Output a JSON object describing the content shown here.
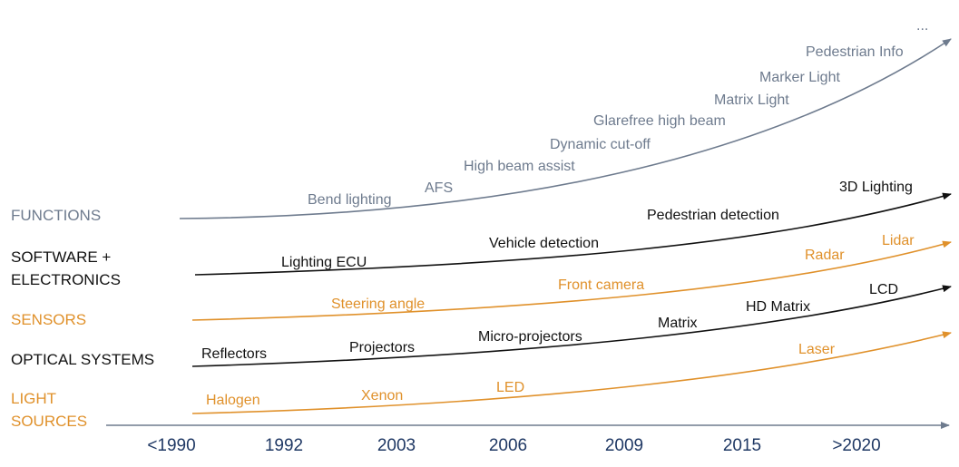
{
  "colors": {
    "functions": "#6e7b8e",
    "black": "#111111",
    "orange": "#e0912b",
    "axis": "#6e7b8e",
    "years": "#1f3864"
  },
  "categories": [
    {
      "id": "functions",
      "lines": [
        "FUNCTIONS"
      ],
      "color": "functions"
    },
    {
      "id": "software",
      "lines": [
        "SOFTWARE +",
        "ELECTRONICS"
      ],
      "color": "black"
    },
    {
      "id": "sensors",
      "lines": [
        "SENSORS"
      ],
      "color": "orange"
    },
    {
      "id": "optical",
      "lines": [
        "OPTICAL SYSTEMS"
      ],
      "color": "black"
    },
    {
      "id": "light",
      "lines": [
        "LIGHT",
        "SOURCES"
      ],
      "color": "orange"
    }
  ],
  "functions_labels": {
    "ellipsis": "...",
    "pedestrian_info": "Pedestrian Info",
    "marker_light": "Marker Light",
    "matrix_light": "Matrix Light",
    "glarefree": "Glarefree high beam",
    "dynamic_cutoff": "Dynamic cut-off",
    "high_beam_assist": "High beam assist",
    "afs": "AFS",
    "bend_lighting": "Bend lighting"
  },
  "software_labels": {
    "lighting_3d": "3D Lighting",
    "pedestrian_detection": "Pedestrian detection",
    "vehicle_detection": "Vehicle detection",
    "lighting_ecu": "Lighting ECU"
  },
  "sensors_labels": {
    "lidar": "Lidar",
    "radar": "Radar",
    "front_camera": "Front camera",
    "steering_angle": "Steering angle"
  },
  "optical_labels": {
    "lcd": "LCD",
    "hd_matrix": "HD Matrix",
    "matrix": "Matrix",
    "micro_projectors": "Micro-projectors",
    "projectors": "Projectors",
    "reflectors": "Reflectors"
  },
  "light_labels": {
    "laser": "Laser",
    "led": "LED",
    "xenon": "Xenon",
    "halogen": "Halogen"
  },
  "timeline": [
    "<1990",
    "1992",
    "2003",
    "2006",
    "2009",
    "2015",
    ">2020"
  ]
}
